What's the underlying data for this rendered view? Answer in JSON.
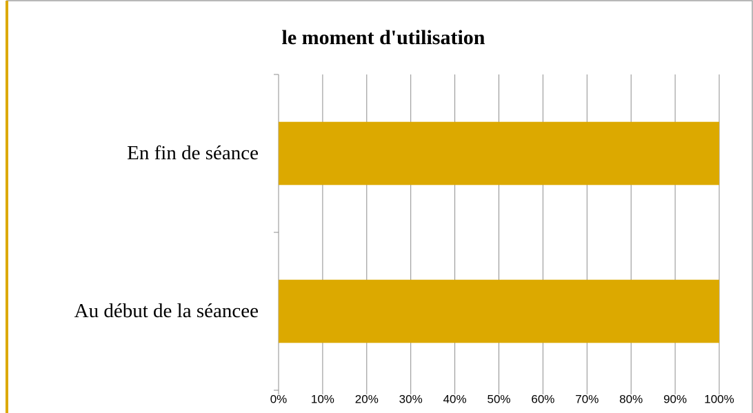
{
  "chart_data": {
    "type": "bar",
    "orientation": "horizontal",
    "title": "le moment d'utilisation",
    "categories": [
      "En fin de séance",
      "Au début de la séancee"
    ],
    "values": [
      100,
      100
    ],
    "color": "#dca900",
    "xlim": [
      0,
      100
    ],
    "xticks": [
      {
        "value": 0,
        "label": "0%"
      },
      {
        "value": 10,
        "label": "10%"
      },
      {
        "value": 20,
        "label": "20%"
      },
      {
        "value": 30,
        "label": "30%"
      },
      {
        "value": 40,
        "label": "40%"
      },
      {
        "value": 50,
        "label": "50%"
      },
      {
        "value": 60,
        "label": "60%"
      },
      {
        "value": 70,
        "label": "70%"
      },
      {
        "value": 80,
        "label": "80%"
      },
      {
        "value": 90,
        "label": "90%"
      },
      {
        "value": 100,
        "label": "100%"
      }
    ],
    "grid": true
  }
}
